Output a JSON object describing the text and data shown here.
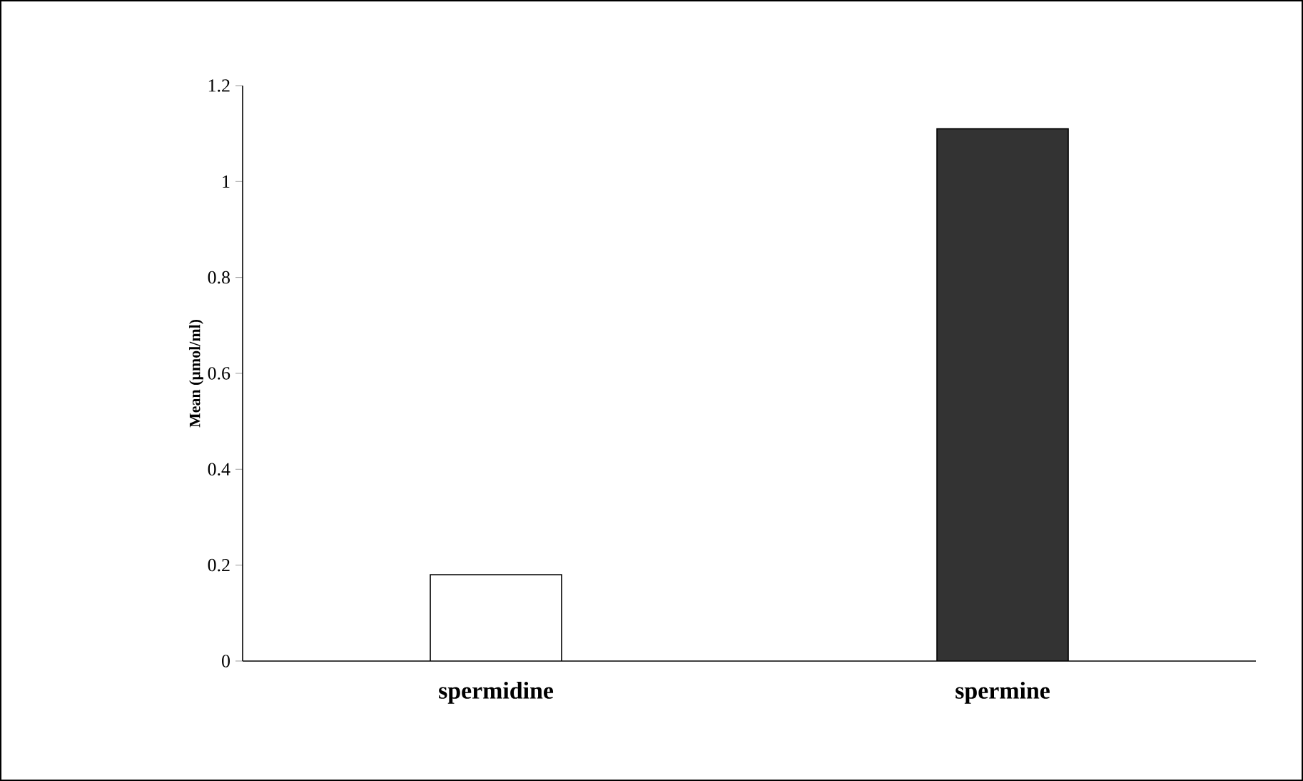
{
  "chart_data": {
    "type": "bar",
    "ylabel": "Mean (µmol/ml)",
    "categories": [
      "spermidine",
      "spermine"
    ],
    "values": [
      0.18,
      1.11
    ],
    "colors": [
      "#ffffff",
      "#333333"
    ],
    "ylim": [
      0,
      1.2
    ],
    "yticks": [
      0,
      0.2,
      0.4,
      0.6,
      0.8,
      1,
      1.2
    ],
    "grid": false
  }
}
